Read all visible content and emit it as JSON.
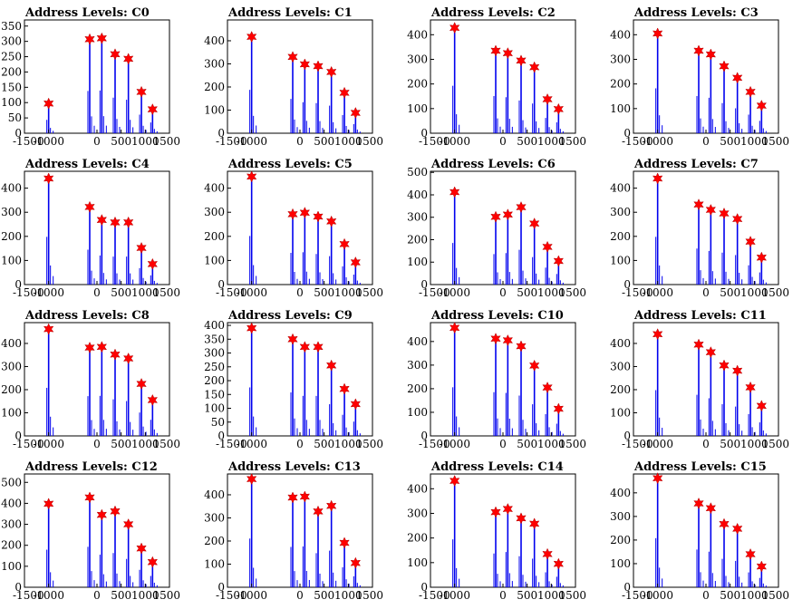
{
  "colors": {
    "histogram": "#0000ee",
    "marker": "#ff0000",
    "axes": "#000000"
  },
  "xtick_values": [
    -1500,
    -1000,
    0,
    500,
    1000,
    1500
  ],
  "xtick_labels": [
    "-1500",
    "-1000",
    "0",
    "500",
    "1000",
    "1500"
  ],
  "chart_data": [
    {
      "type": "bar",
      "title": "Address Levels: C0",
      "xlim": [
        -1500,
        1500
      ],
      "ylim": [
        0,
        370
      ],
      "yticks": [
        0,
        50,
        100,
        150,
        200,
        250,
        300,
        350
      ],
      "markers": {
        "x": [
          -1000,
          -150,
          100,
          375,
          650,
          920,
          1150
        ],
        "y": [
          97,
          307,
          310,
          258,
          243,
          135,
          78
        ]
      }
    },
    {
      "type": "bar",
      "title": "Address Levels: C1",
      "xlim": [
        -1500,
        1500
      ],
      "ylim": [
        0,
        490
      ],
      "yticks": [
        0,
        100,
        200,
        300,
        400
      ],
      "markers": {
        "x": [
          -1000,
          -150,
          100,
          375,
          650,
          920,
          1150
        ],
        "y": [
          417,
          330,
          298,
          290,
          265,
          175,
          88
        ]
      }
    },
    {
      "type": "bar",
      "title": "Address Levels: C2",
      "xlim": [
        -1500,
        1500
      ],
      "ylim": [
        0,
        460
      ],
      "yticks": [
        0,
        100,
        200,
        300,
        400
      ],
      "markers": {
        "x": [
          -1000,
          -150,
          100,
          375,
          650,
          920,
          1150
        ],
        "y": [
          428,
          335,
          325,
          295,
          268,
          138,
          98
        ]
      }
    },
    {
      "type": "bar",
      "title": "Address Levels: C3",
      "xlim": [
        -1500,
        1500
      ],
      "ylim": [
        0,
        460
      ],
      "yticks": [
        0,
        100,
        200,
        300,
        400
      ],
      "markers": {
        "x": [
          -1000,
          -150,
          100,
          375,
          650,
          920,
          1150
        ],
        "y": [
          405,
          335,
          320,
          272,
          225,
          168,
          112
        ]
      }
    },
    {
      "type": "bar",
      "title": "Address Levels: C4",
      "xlim": [
        -1500,
        1500
      ],
      "ylim": [
        0,
        470
      ],
      "yticks": [
        0,
        100,
        200,
        300,
        400
      ],
      "markers": {
        "x": [
          -1000,
          -150,
          100,
          375,
          650,
          920,
          1150
        ],
        "y": [
          440,
          322,
          268,
          258,
          258,
          152,
          85
        ]
      }
    },
    {
      "type": "bar",
      "title": "Address Levels: C5",
      "xlim": [
        -1500,
        1500
      ],
      "ylim": [
        0,
        470
      ],
      "yticks": [
        0,
        100,
        200,
        300,
        400
      ],
      "markers": {
        "x": [
          -1000,
          -150,
          100,
          375,
          650,
          920,
          1150
        ],
        "y": [
          448,
          292,
          298,
          282,
          262,
          168,
          92
        ]
      }
    },
    {
      "type": "bar",
      "title": "Address Levels: C6",
      "xlim": [
        -1500,
        1500
      ],
      "ylim": [
        0,
        505
      ],
      "yticks": [
        0,
        100,
        200,
        300,
        400,
        500
      ],
      "markers": {
        "x": [
          -1000,
          -150,
          100,
          375,
          650,
          920,
          1150
        ],
        "y": [
          412,
          302,
          312,
          345,
          272,
          168,
          105
        ]
      }
    },
    {
      "type": "bar",
      "title": "Address Levels: C7",
      "xlim": [
        -1500,
        1500
      ],
      "ylim": [
        0,
        470
      ],
      "yticks": [
        0,
        100,
        200,
        300,
        400
      ],
      "markers": {
        "x": [
          -1000,
          -150,
          100,
          375,
          650,
          920,
          1150
        ],
        "y": [
          440,
          332,
          310,
          295,
          272,
          178,
          112
        ]
      }
    },
    {
      "type": "bar",
      "title": "Address Levels: C8",
      "xlim": [
        -1500,
        1500
      ],
      "ylim": [
        0,
        490
      ],
      "yticks": [
        0,
        100,
        200,
        300,
        400
      ],
      "markers": {
        "x": [
          -1000,
          -150,
          100,
          375,
          650,
          920,
          1150
        ],
        "y": [
          462,
          382,
          385,
          352,
          335,
          225,
          155
        ]
      }
    },
    {
      "type": "bar",
      "title": "Address Levels: C9",
      "xlim": [
        -1500,
        1500
      ],
      "ylim": [
        0,
        410
      ],
      "yticks": [
        0,
        50,
        100,
        150,
        200,
        250,
        300,
        350,
        400
      ],
      "markers": {
        "x": [
          -1000,
          -150,
          100,
          375,
          650,
          920,
          1150
        ],
        "y": [
          390,
          350,
          322,
          322,
          255,
          170,
          115
        ]
      }
    },
    {
      "type": "bar",
      "title": "Address Levels: C10",
      "xlim": [
        -1500,
        1500
      ],
      "ylim": [
        0,
        480
      ],
      "yticks": [
        0,
        100,
        200,
        300,
        400
      ],
      "markers": {
        "x": [
          -1000,
          -150,
          100,
          375,
          650,
          920,
          1150
        ],
        "y": [
          458,
          412,
          405,
          380,
          298,
          205,
          115
        ]
      }
    },
    {
      "type": "bar",
      "title": "Address Levels: C11",
      "xlim": [
        -1500,
        1500
      ],
      "ylim": [
        0,
        490
      ],
      "yticks": [
        0,
        100,
        200,
        300,
        400
      ],
      "markers": {
        "x": [
          -1000,
          -150,
          100,
          375,
          650,
          920,
          1150
        ],
        "y": [
          440,
          395,
          362,
          305,
          282,
          210,
          130
        ]
      }
    },
    {
      "type": "bar",
      "title": "Address Levels: C12",
      "xlim": [
        -1500,
        1500
      ],
      "ylim": [
        0,
        540
      ],
      "yticks": [
        0,
        100,
        200,
        300,
        400,
        500
      ],
      "markers": {
        "x": [
          -1000,
          -150,
          100,
          375,
          650,
          920,
          1150
        ],
        "y": [
          398,
          428,
          345,
          362,
          300,
          185,
          120
        ]
      }
    },
    {
      "type": "bar",
      "title": "Address Levels: C13",
      "xlim": [
        -1500,
        1500
      ],
      "ylim": [
        0,
        490
      ],
      "yticks": [
        0,
        100,
        200,
        300,
        400
      ],
      "markers": {
        "x": [
          -1000,
          -150,
          100,
          375,
          650,
          920,
          1150
        ],
        "y": [
          468,
          388,
          392,
          328,
          352,
          192,
          105
        ]
      }
    },
    {
      "type": "bar",
      "title": "Address Levels: C14",
      "xlim": [
        -1500,
        1500
      ],
      "ylim": [
        0,
        460
      ],
      "yticks": [
        0,
        100,
        200,
        300,
        400
      ],
      "markers": {
        "x": [
          -1000,
          -150,
          100,
          375,
          650,
          920,
          1150
        ],
        "y": [
          432,
          305,
          318,
          280,
          258,
          135,
          95
        ]
      }
    },
    {
      "type": "bar",
      "title": "Address Levels: C15",
      "xlim": [
        -1500,
        1500
      ],
      "ylim": [
        0,
        480
      ],
      "yticks": [
        0,
        100,
        200,
        300,
        400
      ],
      "markers": {
        "x": [
          -1000,
          -150,
          100,
          375,
          650,
          920,
          1150
        ],
        "y": [
          462,
          355,
          335,
          268,
          248,
          140,
          88
        ]
      }
    }
  ]
}
